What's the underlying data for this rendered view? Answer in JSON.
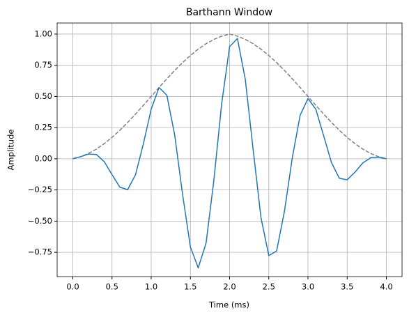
{
  "chart_data": {
    "type": "line",
    "title": "Barthann Window",
    "xlabel": "Time (ms)",
    "ylabel": "Amplitude",
    "x": [
      0.0,
      0.1,
      0.2,
      0.3,
      0.4,
      0.5,
      0.6,
      0.7,
      0.8,
      0.9,
      1.0,
      1.1,
      1.2,
      1.3,
      1.4,
      1.5,
      1.6,
      1.7,
      1.8,
      1.9,
      2.0,
      2.1,
      2.2,
      2.3,
      2.4,
      2.5,
      2.6,
      2.7,
      2.8,
      2.9,
      3.0,
      3.1,
      3.2,
      3.3,
      3.4,
      3.5,
      3.6,
      3.7,
      3.8,
      3.9,
      4.0
    ],
    "series": [
      {
        "color": "#808080",
        "linestyle": "dashed",
        "values": [
          0,
          0.0167,
          0.0426,
          0.0774,
          0.1206,
          0.1713,
          0.2286,
          0.2915,
          0.3586,
          0.4286,
          0.5,
          0.5714,
          0.6414,
          0.7085,
          0.7714,
          0.8287,
          0.8794,
          0.9226,
          0.9574,
          0.9833,
          1.0,
          0.9833,
          0.9574,
          0.9226,
          0.8794,
          0.8287,
          0.7714,
          0.7085,
          0.6414,
          0.5714,
          0.5,
          0.4286,
          0.3586,
          0.2915,
          0.2286,
          0.1713,
          0.1206,
          0.0774,
          0.0426,
          0.0167,
          0
        ]
      },
      {
        "color": "#1f77b4",
        "linestyle": "solid",
        "values": [
          0,
          0.0164,
          0.0381,
          0.0344,
          -0.0224,
          -0.1269,
          -0.2278,
          -0.2472,
          -0.128,
          0.1196,
          0.3985,
          0.5714,
          0.5093,
          0.1892,
          -0.2839,
          -0.7077,
          -0.8751,
          -0.6763,
          -0.1685,
          0.4464,
          0.899,
          0.9646,
          0.6386,
          0.0766,
          -0.4705,
          -0.7765,
          -0.7398,
          -0.4208,
          0.0077,
          0.3491,
          0.483,
          0.3973,
          0.1847,
          -0.0309,
          -0.1566,
          -0.1687,
          -0.1067,
          -0.0334,
          0.0085,
          0.0125,
          0
        ]
      }
    ],
    "xlim": [
      -0.2,
      4.2
    ],
    "xticks": [
      {
        "value": 0,
        "label": "0.0"
      },
      {
        "value": 0.5,
        "label": "0.5"
      },
      {
        "value": 1,
        "label": "1.0"
      },
      {
        "value": 1.5,
        "label": "1.5"
      },
      {
        "value": 2,
        "label": "2.0"
      },
      {
        "value": 2.5,
        "label": "2.5"
      },
      {
        "value": 3,
        "label": "3.0"
      },
      {
        "value": 3.5,
        "label": "3.5"
      },
      {
        "value": 4,
        "label": "4.0"
      }
    ],
    "ylim": [
      -0.945,
      1.089
    ],
    "yticks": [
      {
        "value": -0.75,
        "label": "−0.75"
      },
      {
        "value": -0.5,
        "label": "−0.50"
      },
      {
        "value": -0.25,
        "label": "−0.25"
      },
      {
        "value": 0,
        "label": "0.00"
      },
      {
        "value": 0.25,
        "label": "0.25"
      },
      {
        "value": 0.5,
        "label": "0.50"
      },
      {
        "value": 0.75,
        "label": "0.75"
      },
      {
        "value": 1,
        "label": "1.00"
      }
    ],
    "grid": true
  }
}
